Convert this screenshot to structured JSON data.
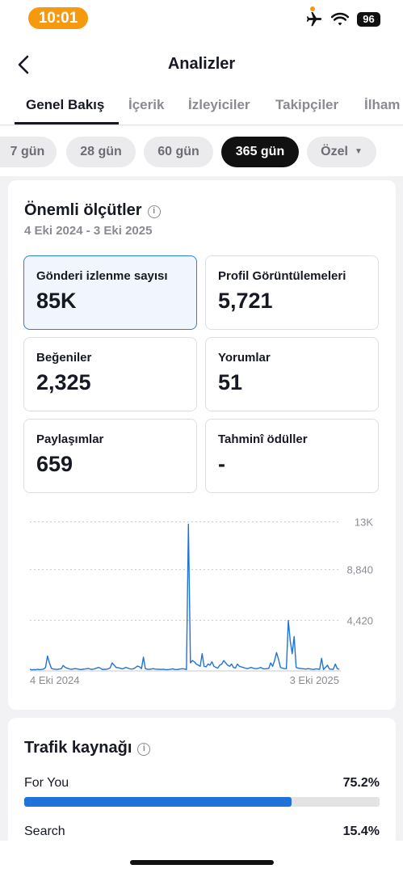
{
  "status": {
    "time": "10:01",
    "battery": "96"
  },
  "nav": {
    "title": "Analizler"
  },
  "tabs": [
    {
      "label": "Genel Bakış"
    },
    {
      "label": "İçerik"
    },
    {
      "label": "İzleyiciler"
    },
    {
      "label": "Takipçiler"
    },
    {
      "label": "İlham"
    }
  ],
  "filters": [
    {
      "label": "7 gün"
    },
    {
      "label": "28 gün"
    },
    {
      "label": "60 gün"
    },
    {
      "label": "365 gün"
    },
    {
      "label": "Özel"
    }
  ],
  "key_metrics": {
    "title": "Önemli ölçütler",
    "date_range": "4 Eki 2024 - 3 Eki 2025",
    "items": [
      {
        "label": "Gönderi izlenme sayısı",
        "value": "85K"
      },
      {
        "label": "Profil Görüntülemeleri",
        "value": "5,721"
      },
      {
        "label": "Beğeniler",
        "value": "2,325"
      },
      {
        "label": "Yorumlar",
        "value": "51"
      },
      {
        "label": "Paylaşımlar",
        "value": "659"
      },
      {
        "label": "Tahminî ödüller",
        "value": "-"
      }
    ]
  },
  "chart_data": {
    "type": "line",
    "series": [
      {
        "values": [
          150,
          90,
          120,
          100,
          140,
          110,
          130,
          160,
          300,
          1300,
          700,
          220,
          160,
          150,
          130,
          170,
          180,
          480,
          320,
          240,
          180,
          140,
          160,
          200,
          180,
          150,
          120,
          140,
          160,
          190,
          210,
          150,
          140,
          180,
          240,
          300,
          250,
          120,
          150,
          140,
          180,
          260,
          700,
          520,
          300,
          280,
          240,
          180,
          220,
          310,
          250,
          180,
          160,
          190,
          300,
          420,
          360,
          200,
          1200,
          200,
          150,
          140,
          160,
          200,
          160,
          150,
          140,
          130,
          150,
          120,
          110,
          130,
          150,
          180,
          130,
          120,
          140,
          170,
          190,
          160,
          120,
          12800,
          700,
          900,
          800,
          600,
          500,
          400,
          1500,
          400,
          350,
          600,
          500,
          800,
          400,
          300,
          250,
          500,
          600,
          900,
          700,
          500,
          400,
          600,
          300,
          250,
          600,
          400,
          350,
          300,
          250,
          200,
          250,
          300,
          250,
          200,
          200,
          250,
          300,
          200,
          180,
          200,
          220,
          700,
          400,
          900,
          1600,
          1000,
          300,
          250,
          200,
          200,
          4400,
          2600,
          1500,
          3000,
          300,
          250,
          220,
          200,
          180,
          160,
          200,
          180,
          150,
          130,
          180,
          160,
          140,
          1100,
          120,
          300,
          500,
          160,
          150,
          140,
          600,
          200,
          140
        ]
      }
    ],
    "x_tick_labels": [
      "4 Eki 2024",
      "3 Eki 2025"
    ],
    "y_tick_labels": [
      "13K",
      "8,840",
      "4,420"
    ],
    "ylim": [
      0,
      13260
    ],
    "grid": true,
    "color": "#1f73d8"
  },
  "traffic": {
    "title": "Trafik kaynağı",
    "items": [
      {
        "label": "For You",
        "value": "75.2%",
        "fraction": 0.752
      },
      {
        "label": "Search",
        "value": "15.4%",
        "fraction": 0.154
      }
    ]
  },
  "colors": {
    "accent": "#1f73d8",
    "time_pill": "#f59a0f"
  }
}
